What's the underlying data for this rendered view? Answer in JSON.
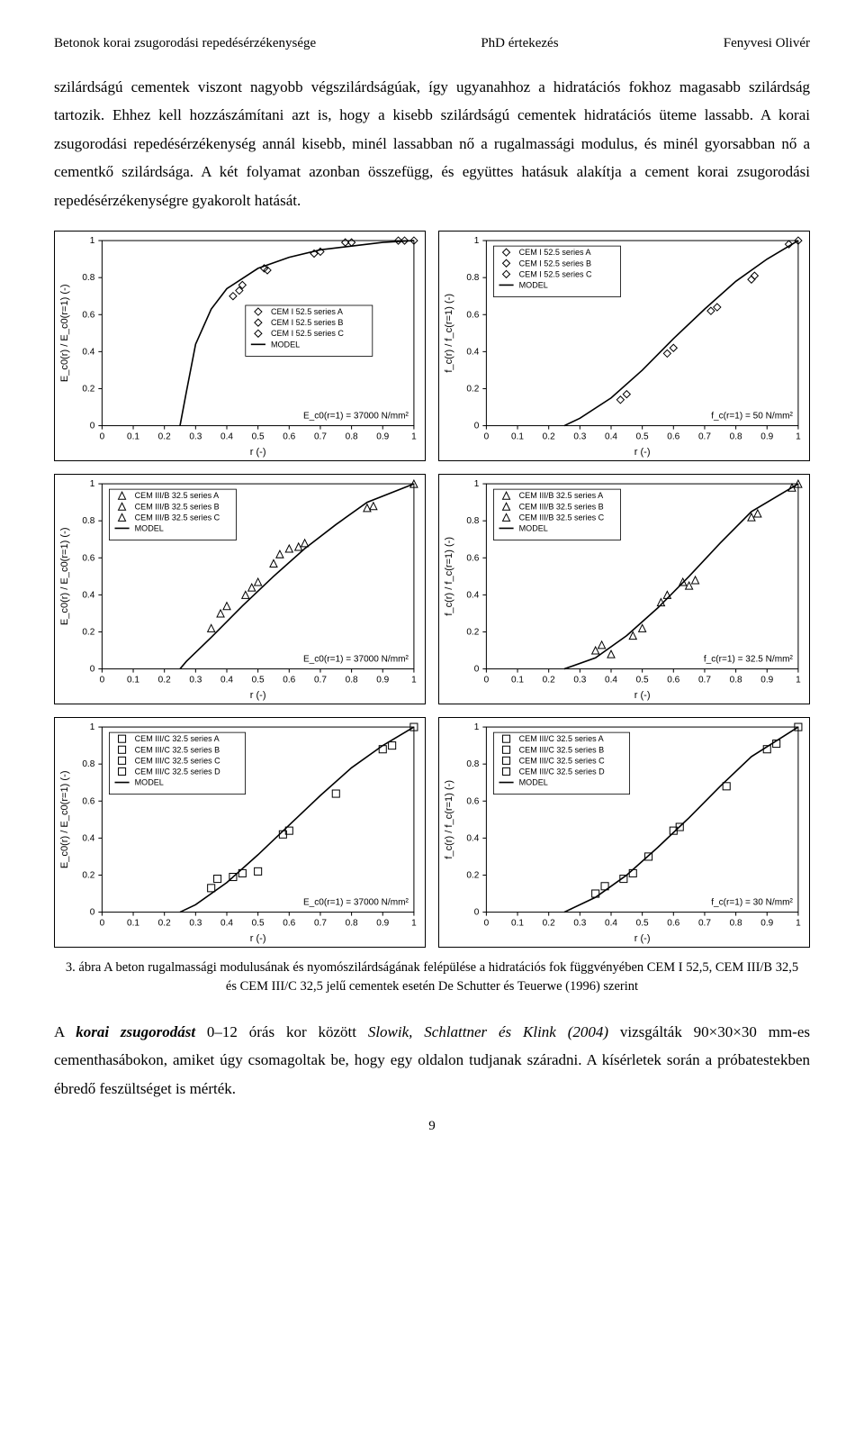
{
  "header": {
    "left": "Betonok korai zsugorodási repedésérzékenysége",
    "center": "PhD értekezés",
    "right": "Fenyvesi Olivér"
  },
  "paragraph1": "szilárdságú cementek viszont nagyobb végszilárdságúak, így ugyanahhoz a hidratációs fokhoz magasabb szilárdság tartozik. Ehhez kell hozzászámítani azt is, hogy a kisebb szilárdságú cementek hidratációs üteme lassabb. A korai zsugorodási repedésérzékenység annál kisebb, minél lassabban nő a rugalmassági modulus, és minél gyorsabban nő a cementkő szilárdsága. A két folyamat azonban összefügg, és együttes hatásuk alakítja a cement korai zsugorodási repedésérzékenységre gyakorolt hatását.",
  "caption": "3. ábra   A beton rugalmassági modulusának és nyomószilárdságának felépülése a hidratációs fok függvényében CEM I 52,5, CEM III/B 32,5 és CEM III/C 32,5 jelű cementek esetén De Schutter és Teuerwe (1996) szerint",
  "paragraph2_pre": "A ",
  "paragraph2_bi": "korai zsugorodást",
  "paragraph2_mid": " 0–12 órás kor között ",
  "paragraph2_it": "Slowik, Schlattner és Klink (2004)",
  "paragraph2_post": " vizsgálták 90×30×30 mm-es cementhasábokon, amiket úgy csomagoltak be, hogy egy oldalon tudjanak száradni. A kísérletek során a próbatestekben ébredő feszültséget is mérték.",
  "page_number": "9",
  "axis": {
    "xlim": [
      0,
      1
    ],
    "ylim": [
      0,
      1
    ],
    "xticks": [
      0,
      0.1,
      0.2,
      0.3,
      0.4,
      0.5,
      0.6,
      0.7,
      0.8,
      0.9,
      1
    ],
    "yticks": [
      0,
      0.2,
      0.4,
      0.6,
      0.8,
      1
    ],
    "xlabel": "r   (-)",
    "tick_fontsize": 10,
    "label_fontsize": 11,
    "axis_color": "#000",
    "background": "#fff"
  },
  "charts": [
    {
      "id": "c1",
      "ylabel": "E_c0(r) / E_c0(r=1)   (-)",
      "note": "E_c0(r=1) = 37000 N/mm²",
      "legend": [
        "CEM I 52.5 series A",
        "CEM I 52.5 series B",
        "CEM I 52.5 series C",
        "MODEL"
      ],
      "marker": "diamond",
      "model_curve": [
        [
          0.25,
          0
        ],
        [
          0.27,
          0.18
        ],
        [
          0.3,
          0.44
        ],
        [
          0.35,
          0.63
        ],
        [
          0.4,
          0.74
        ],
        [
          0.5,
          0.85
        ],
        [
          0.6,
          0.91
        ],
        [
          0.7,
          0.95
        ],
        [
          0.8,
          0.97
        ],
        [
          0.9,
          0.99
        ],
        [
          1.0,
          1.0
        ]
      ],
      "points": [
        [
          0.42,
          0.7
        ],
        [
          0.44,
          0.73
        ],
        [
          0.45,
          0.76
        ],
        [
          0.52,
          0.85
        ],
        [
          0.53,
          0.84
        ],
        [
          0.68,
          0.93
        ],
        [
          0.7,
          0.94
        ],
        [
          0.78,
          0.99
        ],
        [
          0.8,
          0.99
        ],
        [
          0.95,
          1.0
        ],
        [
          0.97,
          1.0
        ],
        [
          1.0,
          1.0
        ]
      ]
    },
    {
      "id": "c2",
      "ylabel": "f_c(r) / f_c(r=1)   (-)",
      "note": "f_c(r=1) = 50 N/mm²",
      "legend": [
        "CEM I 52.5 series A",
        "CEM I 52.5 series B",
        "CEM I 52.5 series C",
        "MODEL"
      ],
      "marker": "diamond",
      "model_curve": [
        [
          0.25,
          0
        ],
        [
          0.3,
          0.04
        ],
        [
          0.4,
          0.15
        ],
        [
          0.5,
          0.3
        ],
        [
          0.6,
          0.47
        ],
        [
          0.7,
          0.63
        ],
        [
          0.8,
          0.78
        ],
        [
          0.9,
          0.9
        ],
        [
          1.0,
          1.0
        ]
      ],
      "points": [
        [
          0.43,
          0.14
        ],
        [
          0.45,
          0.17
        ],
        [
          0.58,
          0.39
        ],
        [
          0.6,
          0.42
        ],
        [
          0.72,
          0.62
        ],
        [
          0.74,
          0.64
        ],
        [
          0.85,
          0.79
        ],
        [
          0.86,
          0.81
        ],
        [
          0.97,
          0.98
        ],
        [
          1.0,
          1.0
        ]
      ]
    },
    {
      "id": "c3",
      "ylabel": "E_c0(r) / E_c0(r=1)   (-)",
      "note": "E_c0(r=1) = 37000 N/mm²",
      "legend": [
        "CEM III/B 32.5 series A",
        "CEM III/B 32.5 series B",
        "CEM III/B 32.5 series C",
        "MODEL"
      ],
      "marker": "triangle",
      "model_curve": [
        [
          0.25,
          0
        ],
        [
          0.27,
          0.04
        ],
        [
          0.35,
          0.17
        ],
        [
          0.45,
          0.34
        ],
        [
          0.55,
          0.5
        ],
        [
          0.65,
          0.65
        ],
        [
          0.75,
          0.78
        ],
        [
          0.85,
          0.9
        ],
        [
          1.0,
          1.0
        ]
      ],
      "points": [
        [
          0.35,
          0.22
        ],
        [
          0.38,
          0.3
        ],
        [
          0.4,
          0.34
        ],
        [
          0.46,
          0.4
        ],
        [
          0.48,
          0.44
        ],
        [
          0.5,
          0.47
        ],
        [
          0.55,
          0.57
        ],
        [
          0.57,
          0.62
        ],
        [
          0.6,
          0.65
        ],
        [
          0.63,
          0.66
        ],
        [
          0.65,
          0.68
        ],
        [
          0.85,
          0.87
        ],
        [
          0.87,
          0.88
        ],
        [
          1.0,
          1.0
        ]
      ]
    },
    {
      "id": "c4",
      "ylabel": "f_c(r) / f_c(r=1)   (-)",
      "note": "f_c(r=1) = 32.5 N/mm²",
      "legend": [
        "CEM III/B 32.5 series A",
        "CEM III/B 32.5 series B",
        "CEM III/B 32.5 series C",
        "MODEL"
      ],
      "marker": "triangle",
      "model_curve": [
        [
          0.25,
          0
        ],
        [
          0.35,
          0.06
        ],
        [
          0.45,
          0.18
        ],
        [
          0.55,
          0.33
        ],
        [
          0.65,
          0.5
        ],
        [
          0.75,
          0.68
        ],
        [
          0.85,
          0.85
        ],
        [
          1.0,
          1.0
        ]
      ],
      "points": [
        [
          0.35,
          0.1
        ],
        [
          0.37,
          0.13
        ],
        [
          0.4,
          0.08
        ],
        [
          0.47,
          0.18
        ],
        [
          0.5,
          0.22
        ],
        [
          0.56,
          0.36
        ],
        [
          0.58,
          0.4
        ],
        [
          0.63,
          0.47
        ],
        [
          0.65,
          0.45
        ],
        [
          0.67,
          0.48
        ],
        [
          0.85,
          0.82
        ],
        [
          0.87,
          0.84
        ],
        [
          0.98,
          0.98
        ],
        [
          1.0,
          1.0
        ]
      ]
    },
    {
      "id": "c5",
      "ylabel": "E_c0(r) / E_c0(r=1)   (-)",
      "note": "E_c0(r=1) = 37000 N/mm²",
      "legend": [
        "CEM III/C 32.5 series A",
        "CEM III/C 32.5 series B",
        "CEM III/C 32.5 series C",
        "CEM III/C 32.5 series D",
        "MODEL"
      ],
      "marker": "square",
      "model_curve": [
        [
          0.25,
          0
        ],
        [
          0.3,
          0.04
        ],
        [
          0.4,
          0.16
        ],
        [
          0.5,
          0.31
        ],
        [
          0.6,
          0.47
        ],
        [
          0.7,
          0.63
        ],
        [
          0.8,
          0.78
        ],
        [
          0.9,
          0.9
        ],
        [
          1.0,
          1.0
        ]
      ],
      "points": [
        [
          0.35,
          0.13
        ],
        [
          0.37,
          0.18
        ],
        [
          0.42,
          0.19
        ],
        [
          0.45,
          0.21
        ],
        [
          0.5,
          0.22
        ],
        [
          0.58,
          0.42
        ],
        [
          0.6,
          0.44
        ],
        [
          0.75,
          0.64
        ],
        [
          0.9,
          0.88
        ],
        [
          0.93,
          0.9
        ],
        [
          1.0,
          1.0
        ]
      ]
    },
    {
      "id": "c6",
      "ylabel": "f_c(r) / f_c(r=1)   (-)",
      "note": "f_c(r=1) = 30 N/mm²",
      "legend": [
        "CEM III/C 32.5 series A",
        "CEM III/C 32.5 series B",
        "CEM III/C 32.5 series C",
        "CEM III/C 32.5 series D",
        "MODEL"
      ],
      "marker": "square",
      "model_curve": [
        [
          0.25,
          0
        ],
        [
          0.35,
          0.08
        ],
        [
          0.45,
          0.2
        ],
        [
          0.55,
          0.35
        ],
        [
          0.65,
          0.51
        ],
        [
          0.75,
          0.68
        ],
        [
          0.85,
          0.84
        ],
        [
          1.0,
          1.0
        ]
      ],
      "points": [
        [
          0.35,
          0.1
        ],
        [
          0.38,
          0.14
        ],
        [
          0.44,
          0.18
        ],
        [
          0.47,
          0.21
        ],
        [
          0.52,
          0.3
        ],
        [
          0.6,
          0.44
        ],
        [
          0.62,
          0.46
        ],
        [
          0.77,
          0.68
        ],
        [
          0.9,
          0.88
        ],
        [
          0.93,
          0.91
        ],
        [
          1.0,
          1.0
        ]
      ]
    }
  ]
}
